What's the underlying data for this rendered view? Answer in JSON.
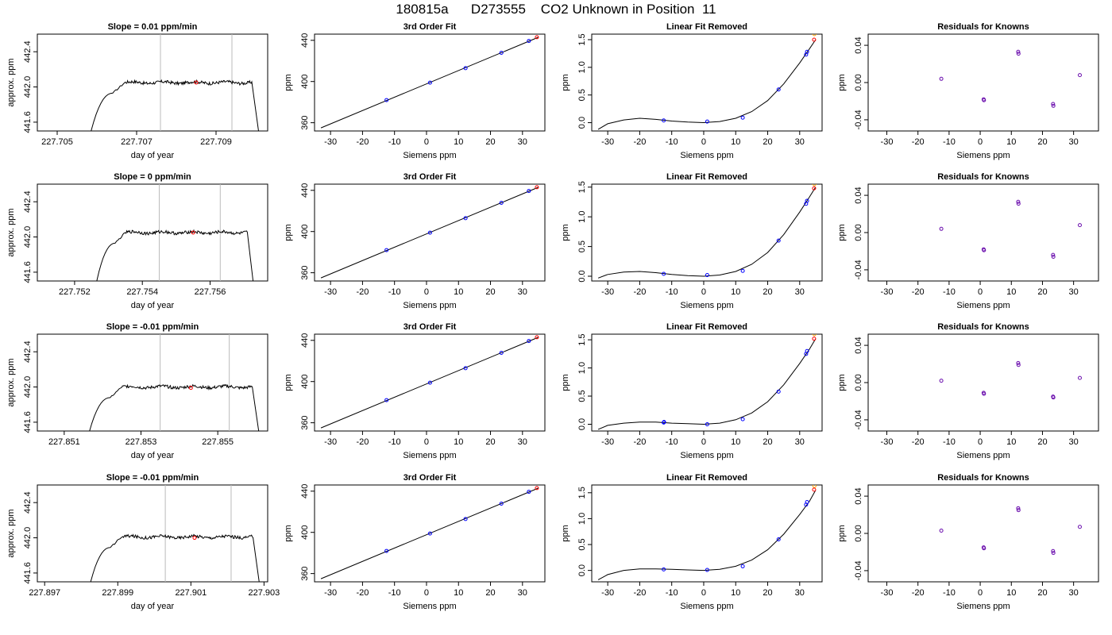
{
  "figure_title": "180815a      D273555    CO2 Unknown in Position  11",
  "colors": {
    "trace": "#000000",
    "known_points": "#0000ff",
    "unknown_point": "#ff0000",
    "extra_point": "#ffa500",
    "residual_points": "#6a0dad",
    "window_lines": "#bbbbbb"
  },
  "chart_data": [
    {
      "type": "line",
      "title": "Slope =  0.01  ppm/min",
      "xlabel": "day of year",
      "ylabel": "approx. ppm",
      "xlim": [
        227.7045,
        227.7103
      ],
      "ylim": [
        441.5,
        442.6
      ],
      "xticks": [
        227.705,
        227.707,
        227.709
      ],
      "yticks": [
        441.6,
        442.0,
        442.4
      ],
      "window": [
        227.7076,
        227.7094
      ],
      "marker": {
        "x": 227.7085,
        "y": 442.05
      },
      "trace": {
        "start": 227.7058,
        "rise_end": 227.7064,
        "plateau_start": 227.7067,
        "end": 227.7099,
        "fall_end": 227.7101,
        "level": 442.05,
        "bottom": 441.4
      }
    },
    {
      "type": "line",
      "title": "3rd Order Fit",
      "xlabel": "Siemens ppm",
      "ylabel": "ppm",
      "xlim": [
        -35,
        37
      ],
      "ylim": [
        352,
        446
      ],
      "xticks": [
        -30,
        -20,
        -10,
        0,
        10,
        20,
        30
      ],
      "yticks": [
        360,
        400,
        440
      ],
      "fit_x": [
        -33,
        35
      ],
      "fit_y": [
        355,
        443
      ],
      "known_x": [
        -12.5,
        1.1,
        12.2,
        23.4,
        32.0
      ],
      "known_y": [
        382.0,
        398.9,
        413.0,
        427.9,
        439.4
      ],
      "unknown_x": [
        34.5
      ],
      "unknown_y": [
        443.0
      ]
    },
    {
      "type": "line",
      "title": "Linear Fit Removed",
      "xlabel": "Siemens ppm",
      "ylabel": "ppm",
      "xlim": [
        -35,
        37
      ],
      "ylim": [
        -0.15,
        1.6
      ],
      "xticks": [
        -30,
        -20,
        -10,
        0,
        10,
        20,
        30
      ],
      "yticks": [
        0.0,
        0.5,
        1.0,
        1.5
      ],
      "curve_x": [
        -33,
        -30,
        -25,
        -20,
        -15,
        -10,
        -5,
        0,
        5,
        10,
        15,
        20,
        25,
        30,
        33,
        35
      ],
      "curve_y": [
        -0.12,
        -0.02,
        0.05,
        0.08,
        0.06,
        0.03,
        0.01,
        0.0,
        0.02,
        0.08,
        0.2,
        0.4,
        0.7,
        1.08,
        1.33,
        1.5
      ],
      "known_x": [
        -12.5,
        1.1,
        12.2,
        23.4,
        32.0,
        32.3
      ],
      "known_y": [
        0.04,
        0.02,
        0.09,
        0.6,
        1.23,
        1.28
      ],
      "unknown_x": [
        34.5
      ],
      "unknown_y": [
        1.5
      ],
      "extra_x": [
        34.6
      ],
      "extra_y": [
        1.6
      ]
    },
    {
      "type": "scatter",
      "title": "Residuals for Knowns",
      "xlabel": "Siemens ppm",
      "ylabel": "ppm",
      "xlim": [
        -36,
        38
      ],
      "ylim": [
        -0.052,
        0.052
      ],
      "xticks": [
        -30,
        -20,
        -10,
        0,
        10,
        20,
        30
      ],
      "yticks": [
        -0.04,
        0.0,
        0.04
      ],
      "x": [
        -12.5,
        1.1,
        1.2,
        12.2,
        12.3,
        23.4,
        23.5,
        32.0
      ],
      "y": [
        0.004,
        -0.018,
        -0.019,
        0.033,
        0.031,
        -0.023,
        -0.025,
        0.008
      ]
    },
    {
      "type": "line",
      "title": "Slope =  0  ppm/min",
      "xlabel": "day of year",
      "ylabel": "approx. ppm",
      "xlim": [
        227.7509,
        227.7577
      ],
      "ylim": [
        441.5,
        442.6
      ],
      "xticks": [
        227.752,
        227.754,
        227.756
      ],
      "yticks": [
        441.6,
        442.0,
        442.4
      ],
      "window": [
        227.7545,
        227.7563
      ],
      "marker": {
        "x": 227.7555,
        "y": 442.05
      },
      "trace": {
        "start": 227.7526,
        "rise_end": 227.7532,
        "plateau_start": 227.7535,
        "end": 227.7571,
        "fall_end": 227.7573,
        "level": 442.05,
        "bottom": 441.4
      }
    },
    {
      "type": "line",
      "title": "3rd Order Fit",
      "xlabel": "Siemens ppm",
      "ylabel": "ppm",
      "xlim": [
        -35,
        37
      ],
      "ylim": [
        352,
        446
      ],
      "xticks": [
        -30,
        -20,
        -10,
        0,
        10,
        20,
        30
      ],
      "yticks": [
        360,
        400,
        440
      ],
      "fit_x": [
        -33,
        35
      ],
      "fit_y": [
        355,
        443
      ],
      "known_x": [
        -12.5,
        1.1,
        12.2,
        23.4,
        32.0
      ],
      "known_y": [
        382.0,
        398.9,
        413.0,
        427.9,
        439.4
      ],
      "unknown_x": [
        34.5
      ],
      "unknown_y": [
        443.0
      ]
    },
    {
      "type": "line",
      "title": "Linear Fit Removed",
      "xlabel": "Siemens ppm",
      "ylabel": "ppm",
      "xlim": [
        -35,
        37
      ],
      "ylim": [
        -0.08,
        1.55
      ],
      "xticks": [
        -30,
        -20,
        -10,
        0,
        10,
        20,
        30
      ],
      "yticks": [
        0.0,
        0.5,
        1.0,
        1.5
      ],
      "curve_x": [
        -33,
        -30,
        -25,
        -20,
        -15,
        -10,
        -5,
        0,
        5,
        10,
        15,
        20,
        25,
        30,
        33,
        35
      ],
      "curve_y": [
        -0.03,
        0.03,
        0.07,
        0.08,
        0.06,
        0.03,
        0.01,
        0.0,
        0.02,
        0.08,
        0.2,
        0.4,
        0.7,
        1.08,
        1.33,
        1.5
      ],
      "known_x": [
        -12.5,
        1.1,
        12.2,
        23.4,
        32.0,
        32.3
      ],
      "known_y": [
        0.04,
        0.02,
        0.09,
        0.6,
        1.22,
        1.27
      ],
      "unknown_x": [
        34.5
      ],
      "unknown_y": [
        1.48
      ],
      "extra_x": [
        34.6
      ],
      "extra_y": [
        1.55
      ]
    },
    {
      "type": "scatter",
      "title": "Residuals for Knowns",
      "xlabel": "Siemens ppm",
      "ylabel": "ppm",
      "xlim": [
        -36,
        38
      ],
      "ylim": [
        -0.052,
        0.052
      ],
      "xticks": [
        -30,
        -20,
        -10,
        0,
        10,
        20,
        30
      ],
      "yticks": [
        -0.04,
        0.0,
        0.04
      ],
      "x": [
        -12.5,
        1.1,
        1.2,
        12.2,
        12.3,
        23.4,
        23.5,
        32.0
      ],
      "y": [
        0.004,
        -0.018,
        -0.019,
        0.033,
        0.031,
        -0.024,
        -0.026,
        0.008
      ]
    },
    {
      "type": "line",
      "title": "Slope =  -0.01  ppm/min",
      "xlabel": "day of year",
      "ylabel": "approx. ppm",
      "xlim": [
        227.8503,
        227.8563
      ],
      "ylim": [
        441.5,
        442.6
      ],
      "xticks": [
        227.851,
        227.853,
        227.855
      ],
      "yticks": [
        441.6,
        442.0,
        442.4
      ],
      "window": [
        227.8535,
        227.8553
      ],
      "marker": {
        "x": 227.8543,
        "y": 441.99
      },
      "trace": {
        "start": 227.8516,
        "rise_end": 227.8522,
        "plateau_start": 227.8525,
        "end": 227.8559,
        "fall_end": 227.8561,
        "level": 442.0,
        "bottom": 441.4
      }
    },
    {
      "type": "line",
      "title": "3rd Order Fit",
      "xlabel": "Siemens ppm",
      "ylabel": "ppm",
      "xlim": [
        -35,
        37
      ],
      "ylim": [
        352,
        446
      ],
      "xticks": [
        -30,
        -20,
        -10,
        0,
        10,
        20,
        30
      ],
      "yticks": [
        360,
        400,
        440
      ],
      "fit_x": [
        -33,
        35
      ],
      "fit_y": [
        355,
        443
      ],
      "known_x": [
        -12.5,
        1.1,
        12.2,
        23.4,
        32.0
      ],
      "known_y": [
        382.0,
        398.9,
        413.0,
        427.9,
        439.4
      ],
      "unknown_x": [
        34.5
      ],
      "unknown_y": [
        443.0
      ]
    },
    {
      "type": "line",
      "title": "Linear Fit Removed",
      "xlabel": "Siemens ppm",
      "ylabel": "ppm",
      "xlim": [
        -35,
        37
      ],
      "ylim": [
        -0.12,
        1.6
      ],
      "xticks": [
        -30,
        -20,
        -10,
        0,
        10,
        20,
        30
      ],
      "yticks": [
        0.0,
        0.5,
        1.0,
        1.5
      ],
      "curve_x": [
        -33,
        -30,
        -25,
        -20,
        -15,
        -10,
        -5,
        0,
        5,
        10,
        15,
        20,
        25,
        30,
        33,
        35
      ],
      "curve_y": [
        -0.09,
        -0.02,
        0.02,
        0.04,
        0.04,
        0.02,
        0.01,
        0.0,
        0.02,
        0.08,
        0.2,
        0.4,
        0.7,
        1.08,
        1.33,
        1.52
      ],
      "known_x": [
        -12.5,
        -12.4,
        1.1,
        12.2,
        23.4,
        32.0,
        32.3
      ],
      "known_y": [
        0.03,
        0.04,
        0.0,
        0.09,
        0.58,
        1.25,
        1.3
      ],
      "unknown_x": [
        34.5
      ],
      "unknown_y": [
        1.52
      ],
      "extra_x": [
        34.6
      ],
      "extra_y": [
        1.6
      ]
    },
    {
      "type": "scatter",
      "title": "Residuals for Knowns",
      "xlabel": "Siemens ppm",
      "ylabel": "ppm",
      "xlim": [
        -36,
        38
      ],
      "ylim": [
        -0.052,
        0.052
      ],
      "xticks": [
        -30,
        -20,
        -10,
        0,
        10,
        20,
        30
      ],
      "yticks": [
        -0.04,
        0.0,
        0.04
      ],
      "x": [
        -12.5,
        1.1,
        1.2,
        12.2,
        12.3,
        23.4,
        23.5,
        32.0
      ],
      "y": [
        0.002,
        -0.011,
        -0.012,
        0.021,
        0.019,
        -0.015,
        -0.016,
        0.005
      ]
    },
    {
      "type": "line",
      "title": "Slope =  -0.01  ppm/min",
      "xlabel": "day of year",
      "ylabel": "approx. ppm",
      "xlim": [
        227.8968,
        227.9031
      ],
      "ylim": [
        441.5,
        442.6
      ],
      "xticks": [
        227.897,
        227.899,
        227.901,
        227.903
      ],
      "yticks": [
        441.6,
        442.0,
        442.4
      ],
      "window": [
        227.9003,
        227.9021
      ],
      "marker": {
        "x": 227.9011,
        "y": 442.0
      },
      "trace": {
        "start": 227.8982,
        "rise_end": 227.8988,
        "plateau_start": 227.8991,
        "end": 227.9027,
        "fall_end": 227.9029,
        "level": 442.01,
        "bottom": 441.4
      }
    },
    {
      "type": "line",
      "title": "3rd Order Fit",
      "xlabel": "Siemens ppm",
      "ylabel": "ppm",
      "xlim": [
        -35,
        37
      ],
      "ylim": [
        352,
        446
      ],
      "xticks": [
        -30,
        -20,
        -10,
        0,
        10,
        20,
        30
      ],
      "yticks": [
        360,
        400,
        440
      ],
      "fit_x": [
        -33,
        35
      ],
      "fit_y": [
        355,
        443
      ],
      "known_x": [
        -12.5,
        1.1,
        12.2,
        23.4,
        32.0
      ],
      "known_y": [
        382.0,
        398.9,
        413.0,
        427.9,
        439.4
      ],
      "unknown_x": [
        34.5
      ],
      "unknown_y": [
        443.0
      ]
    },
    {
      "type": "line",
      "title": "Linear Fit Removed",
      "xlabel": "Siemens ppm",
      "ylabel": "ppm",
      "xlim": [
        -35,
        37
      ],
      "ylim": [
        -0.22,
        1.65
      ],
      "xticks": [
        -30,
        -20,
        -10,
        0,
        10,
        20,
        30
      ],
      "yticks": [
        0.0,
        0.5,
        1.0,
        1.5
      ],
      "curve_x": [
        -33,
        -30,
        -25,
        -20,
        -15,
        -10,
        -5,
        0,
        5,
        10,
        15,
        20,
        25,
        30,
        33,
        35
      ],
      "curve_y": [
        -0.18,
        -0.08,
        0.0,
        0.03,
        0.03,
        0.02,
        0.01,
        0.0,
        0.02,
        0.08,
        0.2,
        0.4,
        0.7,
        1.08,
        1.33,
        1.55
      ],
      "known_x": [
        -12.5,
        1.1,
        12.2,
        23.4,
        32.0,
        32.3
      ],
      "known_y": [
        0.02,
        0.01,
        0.08,
        0.6,
        1.27,
        1.32
      ],
      "unknown_x": [
        34.5
      ],
      "unknown_y": [
        1.56
      ],
      "extra_x": [
        34.6
      ],
      "extra_y": [
        1.63
      ]
    },
    {
      "type": "scatter",
      "title": "Residuals for Knowns",
      "xlabel": "Siemens ppm",
      "ylabel": "ppm",
      "xlim": [
        -36,
        38
      ],
      "ylim": [
        -0.052,
        0.052
      ],
      "xticks": [
        -30,
        -20,
        -10,
        0,
        10,
        20,
        30
      ],
      "yticks": [
        -0.04,
        0.0,
        0.04
      ],
      "x": [
        -12.5,
        1.1,
        1.2,
        12.2,
        12.3,
        23.4,
        23.5,
        32.0
      ],
      "y": [
        0.003,
        -0.015,
        -0.016,
        0.027,
        0.025,
        -0.019,
        -0.021,
        0.007
      ]
    }
  ]
}
